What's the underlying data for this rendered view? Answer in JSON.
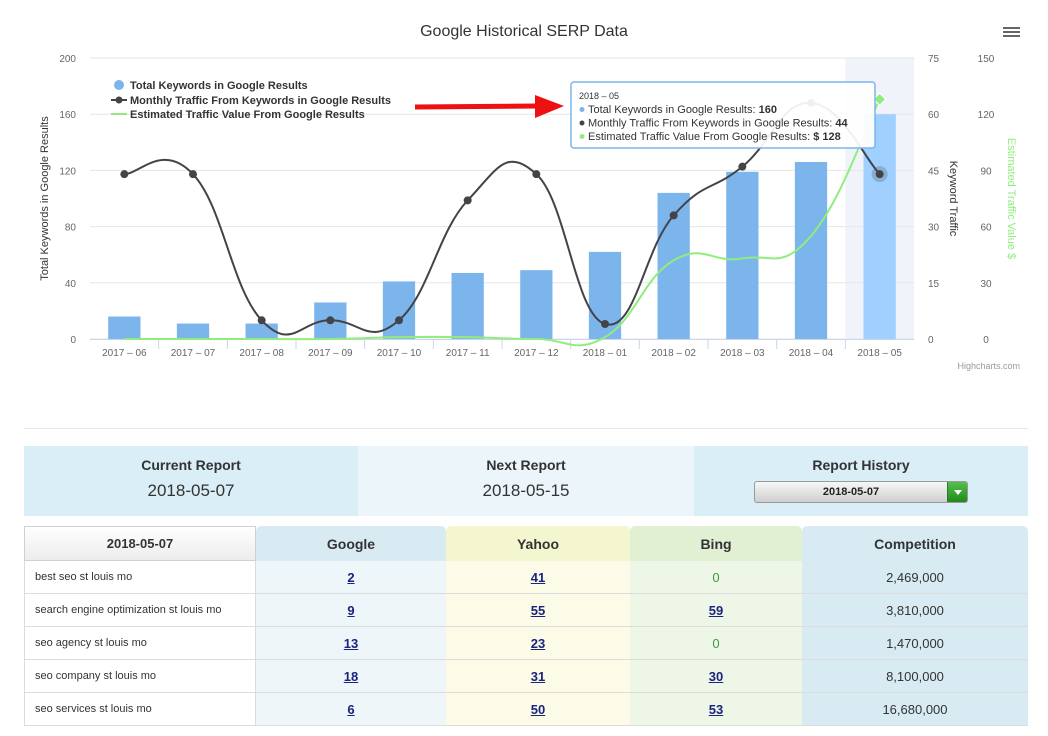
{
  "chart_data": {
    "type": "bar",
    "title": "Google Historical SERP Data",
    "categories": [
      "2017 – 06",
      "2017 – 07",
      "2017 – 08",
      "2017 – 09",
      "2017 – 10",
      "2017 – 11",
      "2017 – 12",
      "2018 – 01",
      "2018 – 02",
      "2018 – 03",
      "2018 – 04",
      "2018 – 05"
    ],
    "series": [
      {
        "name": "Total Keywords in Google Results",
        "kind": "bar",
        "axis": "left",
        "color": "#7cb5ec",
        "values": [
          16,
          11,
          11,
          26,
          41,
          47,
          49,
          62,
          104,
          119,
          126,
          160
        ]
      },
      {
        "name": "Monthly Traffic From Keywords in Google Results",
        "kind": "line",
        "axis": "right1",
        "color": "#434348",
        "values": [
          44,
          44,
          5,
          5,
          5,
          37,
          44,
          4,
          33,
          46,
          63,
          44
        ]
      },
      {
        "name": "Estimated Traffic Value From Google Results",
        "kind": "line",
        "axis": "right2",
        "color": "#90ed7d",
        "values": [
          0,
          0,
          0,
          0,
          1,
          1,
          0,
          1,
          42,
          43,
          55,
          128
        ]
      }
    ],
    "axes": {
      "left": {
        "label": "Total Keywords in Google Results",
        "min": 0,
        "max": 200,
        "ticks": [
          "0",
          "40",
          "80",
          "120",
          "160",
          "200"
        ]
      },
      "right1": {
        "label": "Keyword Traffic",
        "min": 0,
        "max": 75,
        "ticks": [
          "0",
          "15",
          "30",
          "45",
          "60",
          "75"
        ]
      },
      "right2": {
        "label": "Estimated Traffic Value $",
        "min": 0,
        "max": 150,
        "ticks": [
          "0",
          "30",
          "60",
          "90",
          "120",
          "150"
        ]
      }
    },
    "legend_position": "top-left",
    "highlighted_index": 11,
    "tooltip": {
      "header": "2018 – 05",
      "rows": [
        {
          "label": "Total Keywords in Google Results: ",
          "value": "160",
          "color": "#7cb5ec"
        },
        {
          "label": "Monthly Traffic From Keywords in Google Results: ",
          "value": "44",
          "color": "#434348"
        },
        {
          "label": "Estimated Traffic Value From Google Results: ",
          "value": "$ 128",
          "color": "#90ed7d"
        }
      ]
    },
    "credits": "Highcharts.com",
    "annotation_arrow_color": "#ee1111"
  },
  "report": {
    "current_label": "Current Report",
    "current_date": "2018-05-07",
    "next_label": "Next Report",
    "next_date": "2018-05-15",
    "history_label": "Report History",
    "history_selected": "2018-05-07"
  },
  "table": {
    "headers": {
      "keyword": "2018-05-07",
      "google": "Google",
      "yahoo": "Yahoo",
      "bing": "Bing",
      "competition": "Competition"
    },
    "rows": [
      {
        "keyword": "best seo st louis mo",
        "google": "2",
        "yahoo": "41",
        "bing": "0",
        "competition": "2,469,000"
      },
      {
        "keyword": "search engine optimization st louis mo",
        "google": "9",
        "yahoo": "55",
        "bing": "59",
        "competition": "3,810,000"
      },
      {
        "keyword": "seo agency st louis mo",
        "google": "13",
        "yahoo": "23",
        "bing": "0",
        "competition": "1,470,000"
      },
      {
        "keyword": "seo company st louis mo",
        "google": "18",
        "yahoo": "31",
        "bing": "30",
        "competition": "8,100,000"
      },
      {
        "keyword": "seo services st louis mo",
        "google": "6",
        "yahoo": "50",
        "bing": "53",
        "competition": "16,680,000"
      }
    ]
  }
}
